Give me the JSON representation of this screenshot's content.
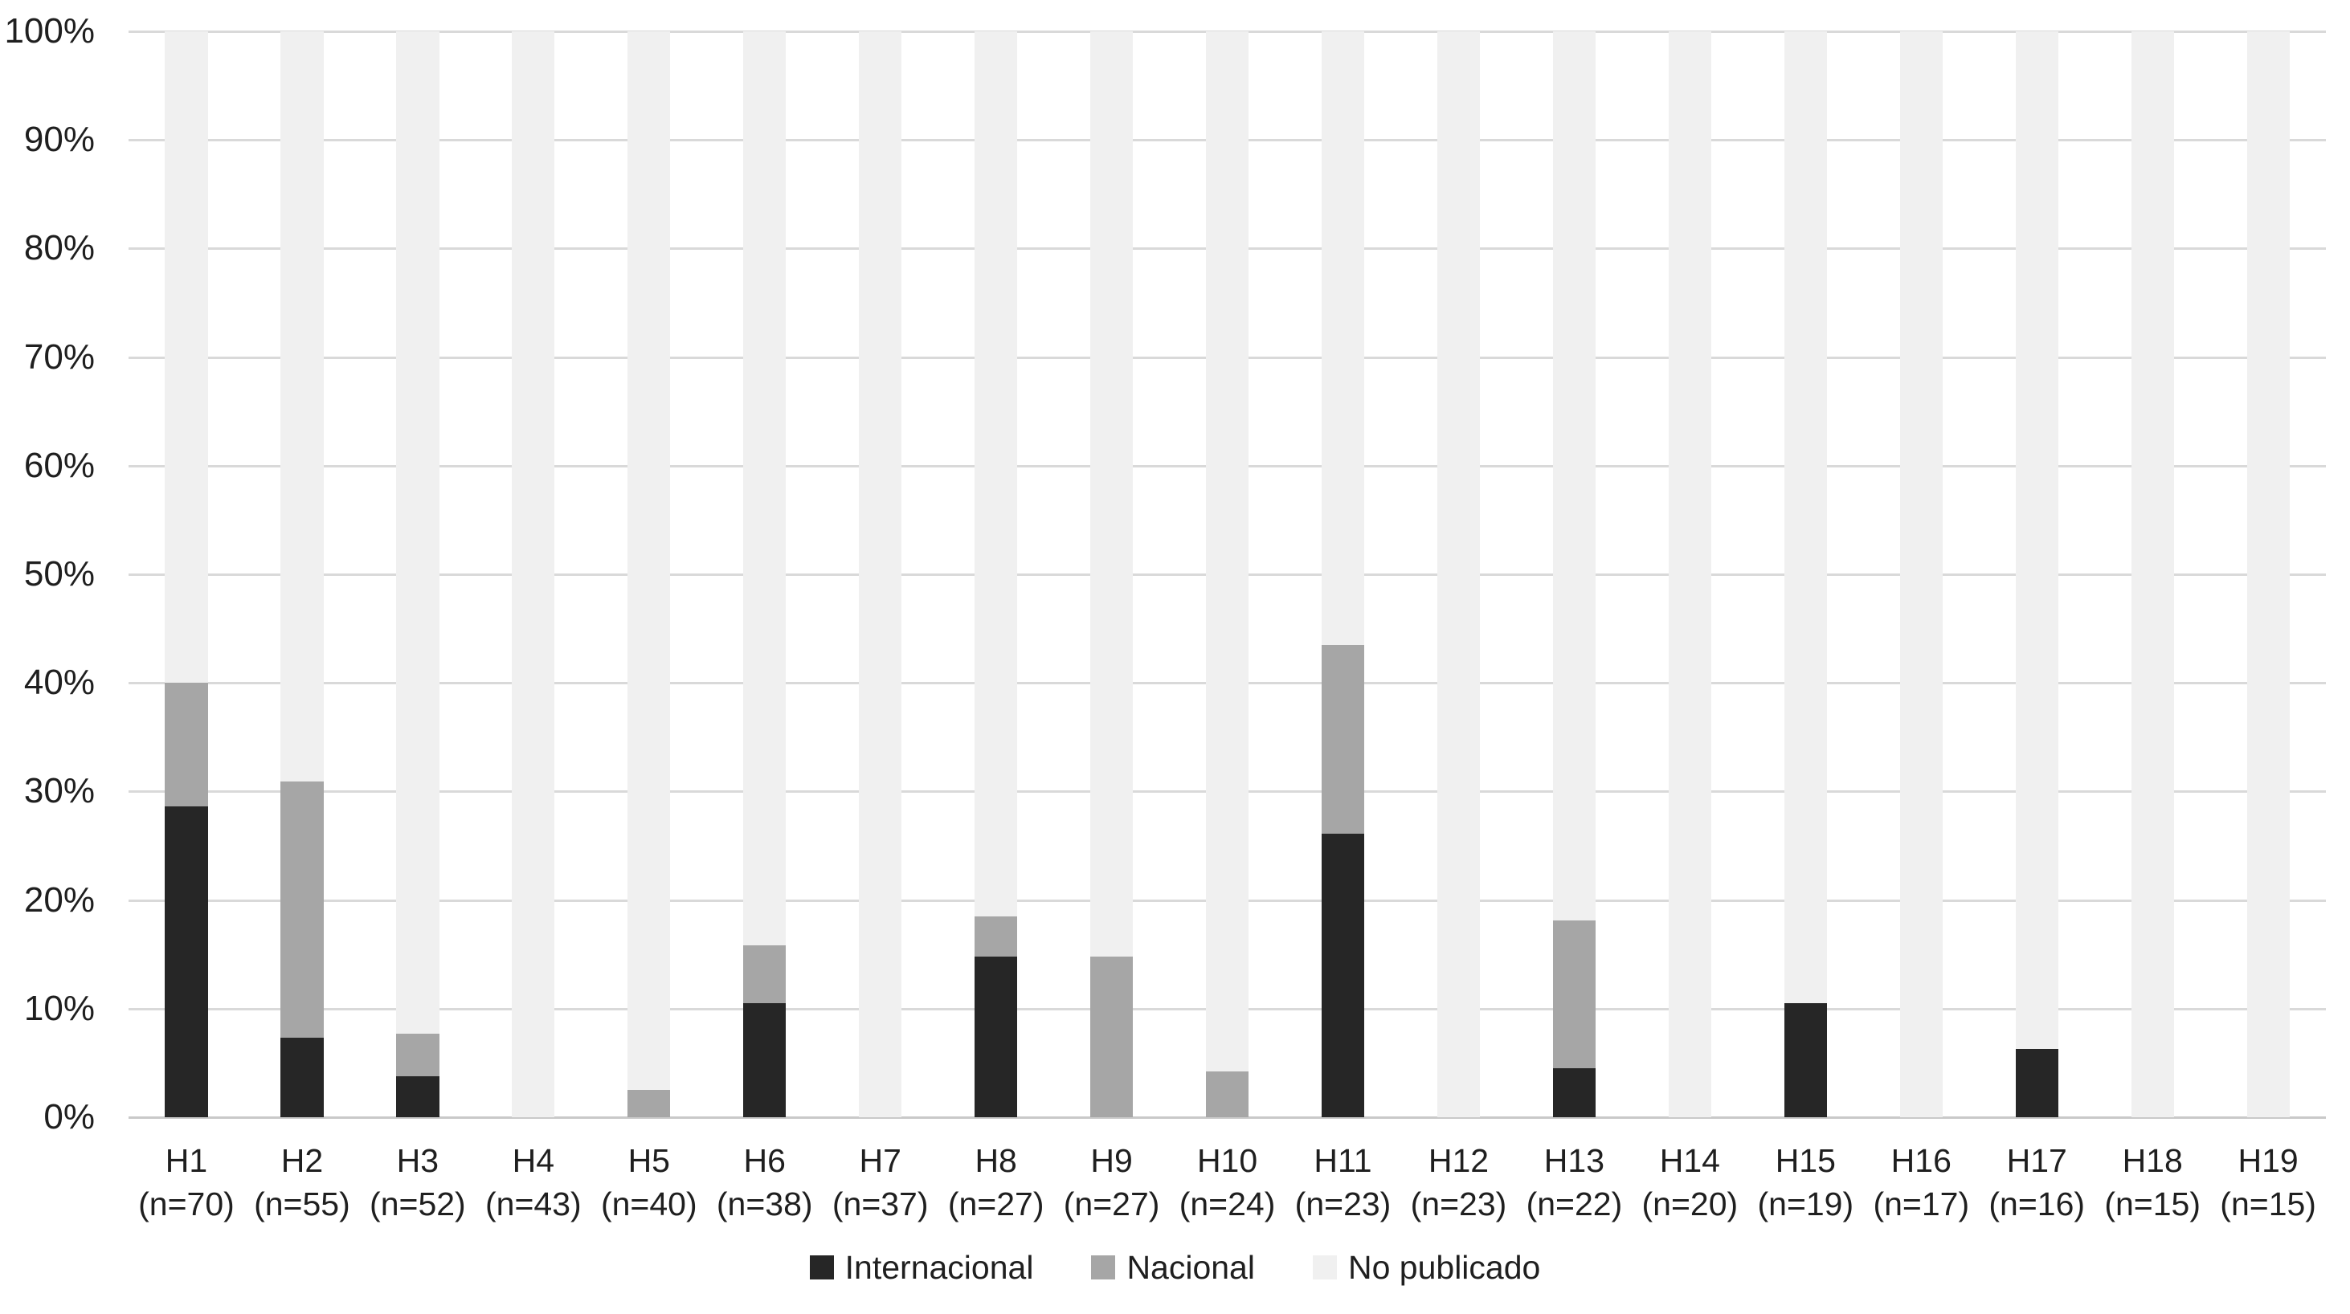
{
  "chart_data": {
    "type": "bar",
    "stacked": true,
    "stacked_total_percent": 100,
    "title": "",
    "xlabel": "",
    "ylabel": "",
    "ylim": [
      0,
      100
    ],
    "grid": true,
    "legend_position": "bottom",
    "y_ticks": [
      "0%",
      "10%",
      "20%",
      "30%",
      "40%",
      "50%",
      "60%",
      "70%",
      "80%",
      "90%",
      "100%"
    ],
    "categories": [
      {
        "label": "H1",
        "n_label": "(n=70)"
      },
      {
        "label": "H2",
        "n_label": "(n=55)"
      },
      {
        "label": "H3",
        "n_label": "(n=52)"
      },
      {
        "label": "H4",
        "n_label": "(n=43)"
      },
      {
        "label": "H5",
        "n_label": "(n=40)"
      },
      {
        "label": "H6",
        "n_label": "(n=38)"
      },
      {
        "label": "H7",
        "n_label": "(n=37)"
      },
      {
        "label": "H8",
        "n_label": "(n=27)"
      },
      {
        "label": "H9",
        "n_label": "(n=27)"
      },
      {
        "label": "H10",
        "n_label": "(n=24)"
      },
      {
        "label": "H11",
        "n_label": "(n=23)"
      },
      {
        "label": "H12",
        "n_label": "(n=23)"
      },
      {
        "label": "H13",
        "n_label": "(n=22)"
      },
      {
        "label": "H14",
        "n_label": "(n=20)"
      },
      {
        "label": "H15",
        "n_label": "(n=19)"
      },
      {
        "label": "H16",
        "n_label": "(n=17)"
      },
      {
        "label": "H17",
        "n_label": "(n=16)"
      },
      {
        "label": "H18",
        "n_label": "(n=15)"
      },
      {
        "label": "H19",
        "n_label": "(n=15)"
      }
    ],
    "series": [
      {
        "name": "Internacional",
        "color": "#262626",
        "values": [
          28.6,
          7.3,
          3.8,
          0,
          0,
          10.5,
          0,
          14.8,
          0,
          0,
          26.1,
          0,
          4.5,
          0,
          10.5,
          0,
          6.3,
          0,
          0
        ]
      },
      {
        "name": "Nacional",
        "color": "#a6a6a6",
        "values": [
          11.4,
          23.6,
          3.9,
          0,
          2.5,
          5.3,
          0,
          3.7,
          14.8,
          4.2,
          17.4,
          0,
          13.6,
          0,
          0,
          0,
          0,
          0,
          0
        ]
      },
      {
        "name": "No publicado",
        "color": "#f0f0f0",
        "values": [
          60.0,
          69.1,
          92.3,
          100,
          97.5,
          84.2,
          100,
          81.5,
          85.2,
          95.8,
          56.5,
          100,
          81.9,
          100,
          89.5,
          100,
          93.7,
          100,
          100
        ]
      }
    ]
  },
  "colors": {
    "gridline": "#d9d9d9",
    "axis_baseline": "#c9c9c9",
    "text": "#1f1f1f",
    "background": "#ffffff"
  }
}
